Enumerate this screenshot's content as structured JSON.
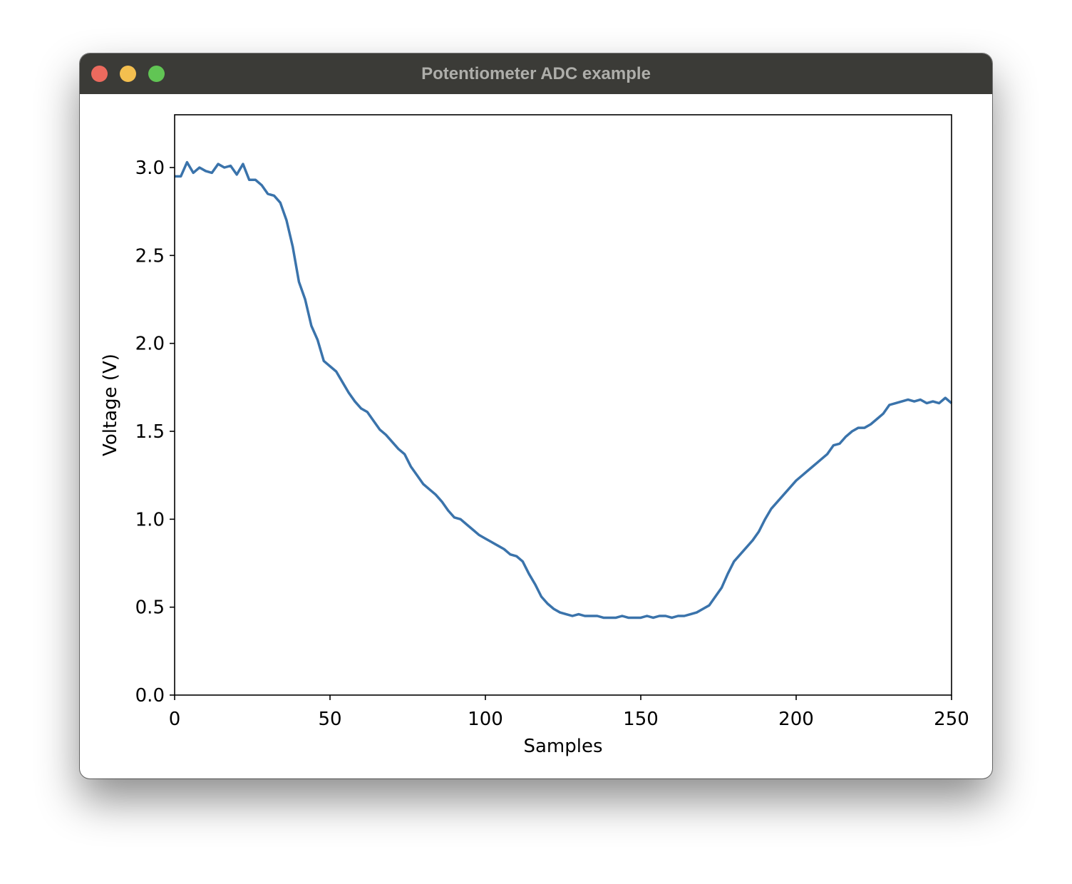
{
  "window": {
    "title": "Potentiometer ADC example"
  },
  "chart_data": {
    "type": "line",
    "x_label": "Samples",
    "y_label": "Voltage (V)",
    "x": [
      0,
      2,
      4,
      6,
      8,
      10,
      12,
      14,
      16,
      18,
      20,
      22,
      24,
      26,
      28,
      30,
      32,
      34,
      36,
      38,
      40,
      42,
      44,
      46,
      48,
      50,
      52,
      54,
      56,
      58,
      60,
      62,
      64,
      66,
      68,
      70,
      72,
      74,
      76,
      78,
      80,
      82,
      84,
      86,
      88,
      90,
      92,
      94,
      96,
      98,
      100,
      102,
      104,
      106,
      108,
      110,
      112,
      114,
      116,
      118,
      120,
      122,
      124,
      126,
      128,
      130,
      132,
      134,
      136,
      138,
      140,
      142,
      144,
      146,
      148,
      150,
      152,
      154,
      156,
      158,
      160,
      162,
      164,
      166,
      168,
      170,
      172,
      174,
      176,
      178,
      180,
      182,
      184,
      186,
      188,
      190,
      192,
      194,
      196,
      198,
      200,
      202,
      204,
      206,
      208,
      210,
      212,
      214,
      216,
      218,
      220,
      222,
      224,
      226,
      228,
      230,
      232,
      234,
      236,
      238,
      240,
      242,
      244,
      246,
      248,
      250
    ],
    "series": [
      {
        "color": "#3a73ab",
        "values": [
          2.95,
          2.95,
          3.03,
          2.97,
          3.0,
          2.98,
          2.97,
          3.02,
          3.0,
          3.01,
          2.96,
          3.02,
          2.93,
          2.93,
          2.9,
          2.85,
          2.84,
          2.8,
          2.7,
          2.55,
          2.35,
          2.25,
          2.1,
          2.02,
          1.9,
          1.87,
          1.84,
          1.78,
          1.72,
          1.67,
          1.63,
          1.61,
          1.56,
          1.51,
          1.48,
          1.44,
          1.4,
          1.37,
          1.3,
          1.25,
          1.2,
          1.17,
          1.14,
          1.1,
          1.05,
          1.01,
          1.0,
          0.97,
          0.94,
          0.91,
          0.89,
          0.87,
          0.85,
          0.83,
          0.8,
          0.79,
          0.76,
          0.69,
          0.63,
          0.56,
          0.52,
          0.49,
          0.47,
          0.46,
          0.45,
          0.46,
          0.45,
          0.45,
          0.45,
          0.44,
          0.44,
          0.44,
          0.45,
          0.44,
          0.44,
          0.44,
          0.45,
          0.44,
          0.45,
          0.45,
          0.44,
          0.45,
          0.45,
          0.46,
          0.47,
          0.49,
          0.51,
          0.56,
          0.61,
          0.69,
          0.76,
          0.8,
          0.84,
          0.88,
          0.93,
          1.0,
          1.06,
          1.1,
          1.14,
          1.18,
          1.22,
          1.25,
          1.28,
          1.31,
          1.34,
          1.37,
          1.42,
          1.43,
          1.47,
          1.5,
          1.52,
          1.52,
          1.54,
          1.57,
          1.6,
          1.65,
          1.66,
          1.67,
          1.68,
          1.67,
          1.68,
          1.66,
          1.67,
          1.66,
          1.69,
          1.66
        ]
      }
    ],
    "xlim": [
      0,
      250
    ],
    "ylim": [
      0,
      3.3
    ],
    "xticks": [
      0,
      50,
      100,
      150,
      200,
      250
    ],
    "yticks": [
      {
        "value": 0,
        "label": "0.0"
      },
      0.5,
      {
        "value": 1,
        "label": "1.0"
      },
      1.5,
      {
        "value": 2,
        "label": "2.0"
      },
      2.5,
      {
        "value": 3,
        "label": "3.0"
      }
    ],
    "grid": false
  }
}
